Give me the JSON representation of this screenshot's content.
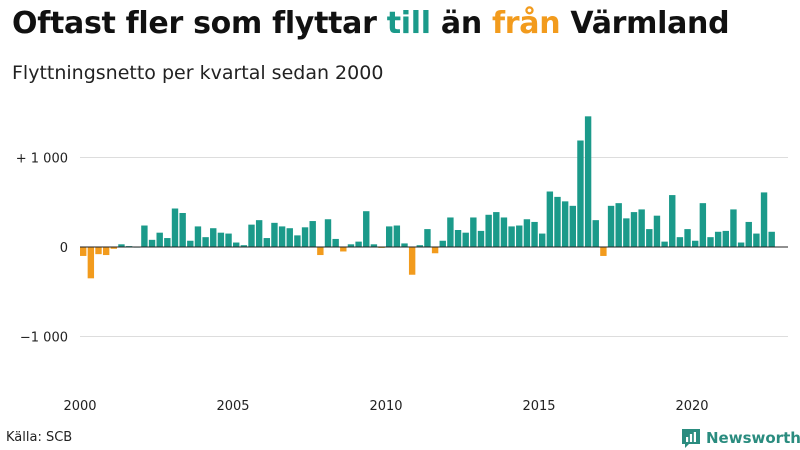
{
  "title": {
    "part1": "Oftast fler som flyttar ",
    "highlight1": "till",
    "part2": " än ",
    "highlight2": "från",
    "part3": " Värmland"
  },
  "subtitle": "Flyttningsnetto per kvartal sedan 2000",
  "source": "Källa: SCB",
  "brand": {
    "name": "Newsworthy",
    "icon": "newsworthy-bar-chart-logo"
  },
  "colors": {
    "positive": "#1b9a8a",
    "negative": "#f29b1d",
    "grid": "#dddddd",
    "axis": "#222222",
    "brand": "#2a8c7f"
  },
  "chart_data": {
    "type": "bar",
    "x_start_year": 2000,
    "periods_per_year": 4,
    "ylim": [
      -1550,
      1550
    ],
    "y_ticks": [
      {
        "value": 1000,
        "label": "+ 1 000"
      },
      {
        "value": 0,
        "label": "0"
      },
      {
        "value": -1000,
        "label": "−1 000"
      }
    ],
    "x_ticks": [
      "2000",
      "2005",
      "2010",
      "2015",
      "2020"
    ],
    "grid": true,
    "values": [
      -100,
      -350,
      -80,
      -90,
      -20,
      30,
      10,
      0,
      240,
      80,
      160,
      100,
      430,
      380,
      70,
      230,
      110,
      210,
      160,
      150,
      50,
      20,
      250,
      300,
      100,
      270,
      230,
      210,
      130,
      220,
      290,
      -90,
      310,
      90,
      -50,
      30,
      60,
      400,
      30,
      -10,
      230,
      240,
      40,
      -310,
      20,
      200,
      -70,
      70,
      330,
      190,
      160,
      330,
      180,
      360,
      390,
      330,
      230,
      240,
      310,
      280,
      150,
      620,
      560,
      510,
      460,
      1190,
      1460,
      300,
      -100,
      460,
      490,
      320,
      390,
      420,
      200,
      350,
      60,
      580,
      110,
      200,
      70,
      490,
      110,
      170,
      180,
      420,
      50,
      280,
      150,
      610,
      170
    ]
  }
}
